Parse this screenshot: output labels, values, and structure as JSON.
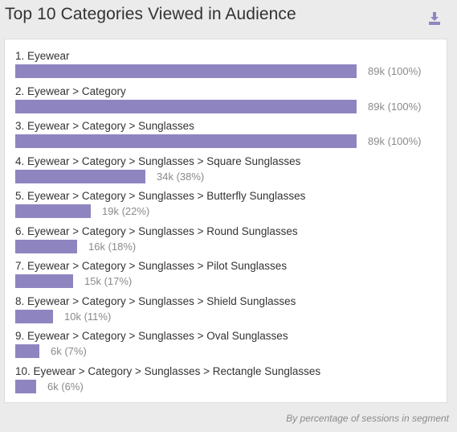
{
  "widget": {
    "title": "Top 10 Categories Viewed in Audience",
    "download_icon": "download-icon",
    "footnote": "By percentage of sessions in segment",
    "bar_color": "#8e85c0"
  },
  "chart_data": {
    "type": "bar",
    "orientation": "horizontal",
    "categories": [
      "1. Eyewear",
      "2. Eyewear > Category",
      "3. Eyewear > Category > Sunglasses",
      "4. Eyewear > Category > Sunglasses > Square Sunglasses",
      "5. Eyewear > Category > Sunglasses > Butterfly Sunglasses",
      "6. Eyewear > Category > Sunglasses > Round Sunglasses",
      "7. Eyewear > Category > Sunglasses > Pilot Sunglasses",
      "8. Eyewear > Category > Sunglasses > Shield Sunglasses",
      "9. Eyewear > Category > Sunglasses > Oval Sunglasses",
      "10. Eyewear > Category > Sunglasses > Rectangle Sunglasses"
    ],
    "percent": [
      100,
      100,
      100,
      38,
      22,
      18,
      17,
      11,
      7,
      6
    ],
    "value_labels": [
      "89k (100%)",
      "89k (100%)",
      "89k (100%)",
      "34k (38%)",
      "19k (22%)",
      "16k (18%)",
      "15k (17%)",
      "10k (11%)",
      "6k (7%)",
      "6k (6%)"
    ],
    "xlim": [
      0,
      100
    ]
  }
}
